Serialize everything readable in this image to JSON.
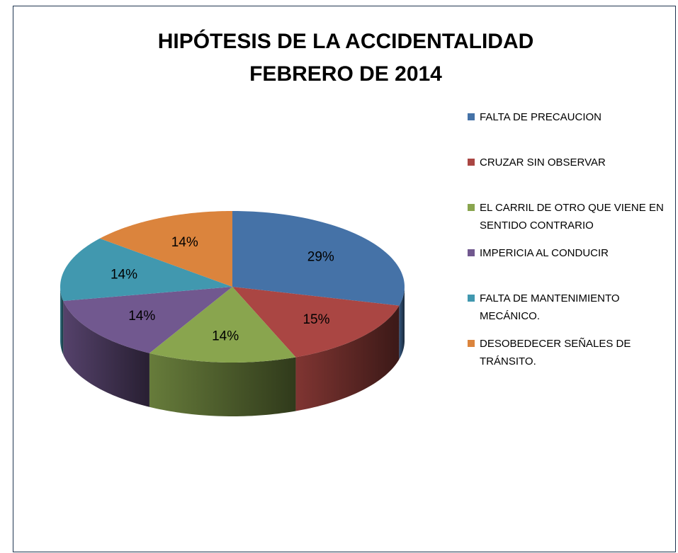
{
  "chart_data": {
    "type": "pie",
    "title": [
      "HIPÓTESIS DE LA ACCIDENTALIDAD",
      "FEBRERO DE 2014"
    ],
    "categories": [
      "FALTA DE PRECAUCION",
      "CRUZAR SIN OBSERVAR",
      "EL CARRIL DE OTRO QUE VIENE EN SENTIDO CONTRARIO",
      "IMPERICIA AL CONDUCIR",
      "FALTA DE MANTENIMIENTO MECÁNICO.",
      "DESOBEDECER SEÑALES DE TRÁNSITO."
    ],
    "values": [
      29,
      15,
      14,
      14,
      14,
      14
    ],
    "value_labels": [
      "29%",
      "15%",
      "14%",
      "14%",
      "14%",
      "14%"
    ],
    "colors": [
      "#4572a7",
      "#aa4643",
      "#89a54e",
      "#71588f",
      "#4198af",
      "#db843d"
    ],
    "legend": "right"
  }
}
